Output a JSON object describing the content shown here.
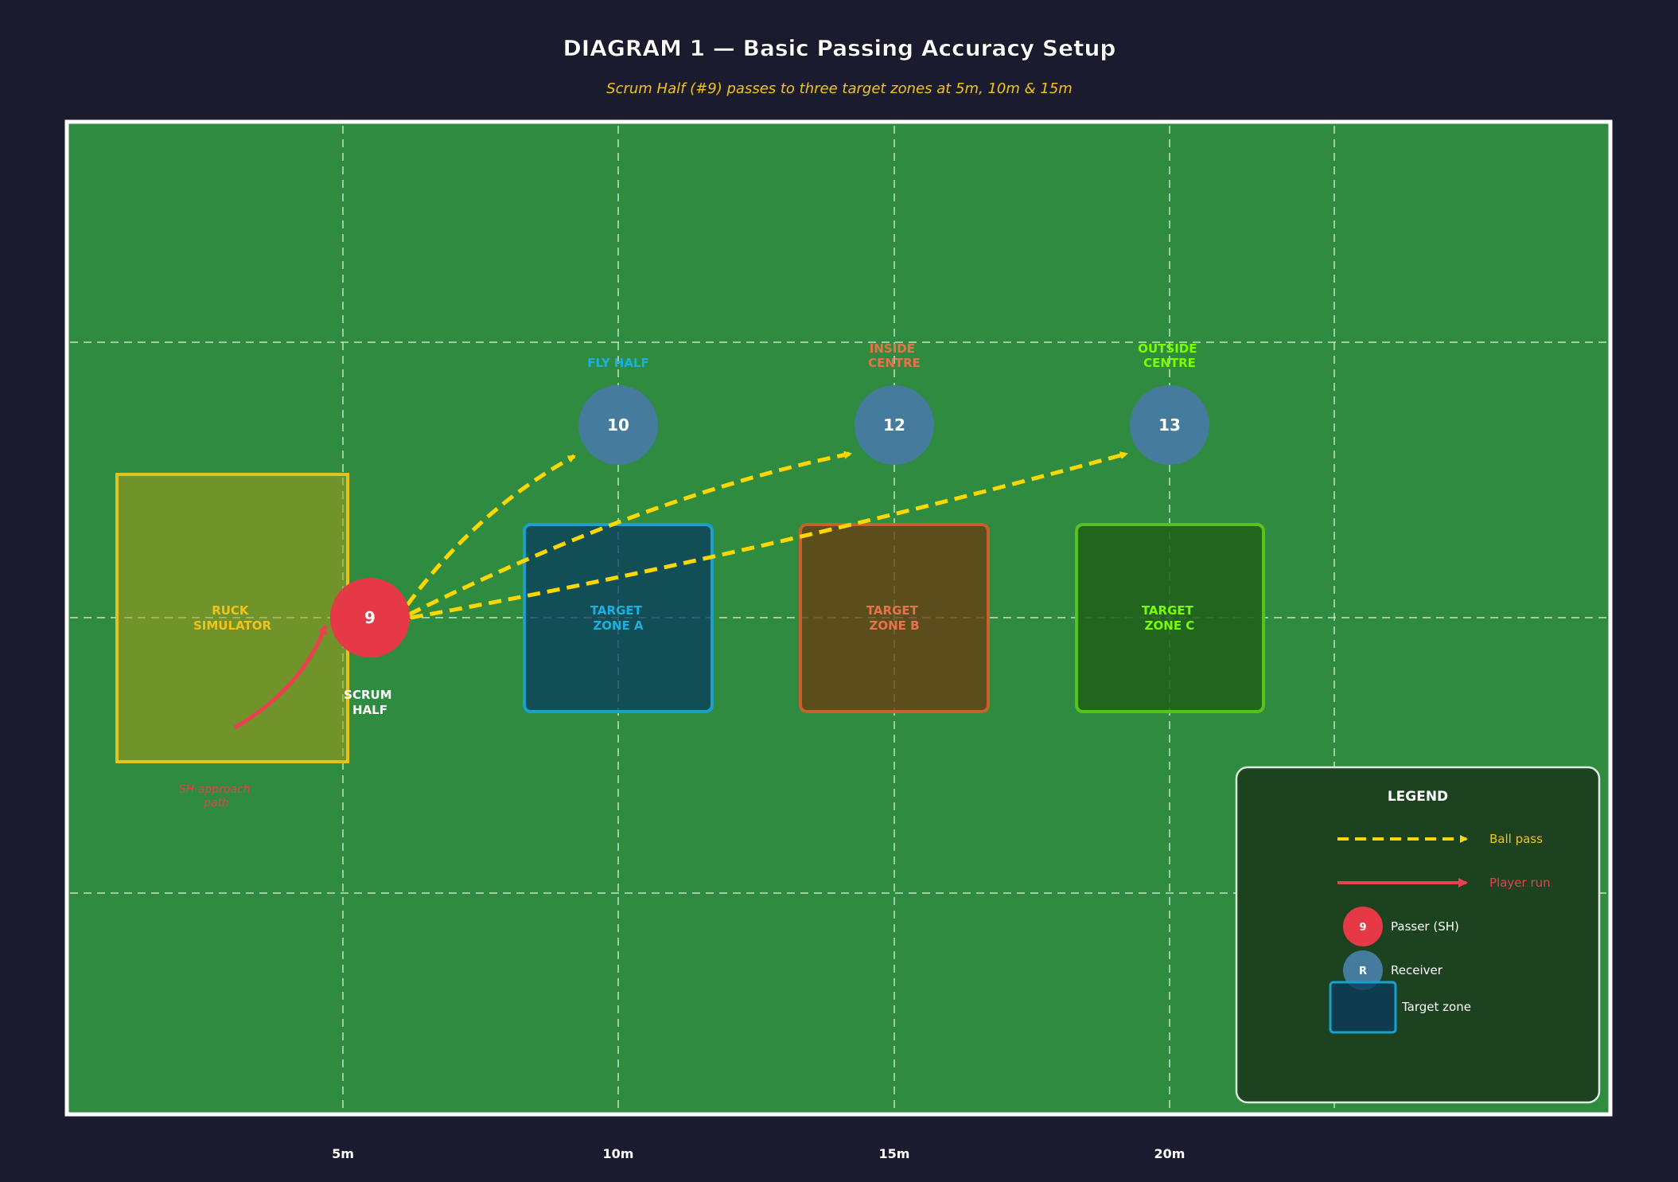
{
  "header": {
    "title": "DIAGRAM 1 — Basic Passing Accuracy Setup",
    "subtitle": "Scrum Half (#9) passes to three target zones at 5m, 10m & 15m"
  },
  "colors": {
    "background": "#1b1b2f",
    "pitch": "#2e8b3f",
    "pitch_border": "#ffffff",
    "ball_pass": "#ffd700",
    "player_run": "#e8414f",
    "passer": "#e63946",
    "receiver": "#457b9d",
    "zone_a": "#1ab0e0",
    "zone_b": "#e8734a",
    "zone_c": "#7cfc00",
    "ruck": "#f2c31b"
  },
  "distance_markers": [
    "5m",
    "10m",
    "15m",
    "20m"
  ],
  "ruck_simulator": {
    "line1": "RUCK",
    "line2": "SIMULATOR"
  },
  "approach_label": {
    "line1": "SH approach",
    "line2": "path"
  },
  "passer": {
    "number": "9",
    "label1": "SCRUM",
    "label2": "HALF"
  },
  "receivers": [
    {
      "number": "10",
      "label1": "FLY HALF",
      "label2": ""
    },
    {
      "number": "12",
      "label1": "INSIDE",
      "label2": "CENTRE"
    },
    {
      "number": "13",
      "label1": "OUTSIDE",
      "label2": "CENTRE"
    }
  ],
  "target_zones": [
    {
      "line1": "TARGET",
      "line2": "ZONE A"
    },
    {
      "line1": "TARGET",
      "line2": "ZONE B"
    },
    {
      "line1": "TARGET",
      "line2": "ZONE C"
    }
  ],
  "legend": {
    "title": "LEGEND",
    "ball_pass": "Ball pass",
    "player_run": "Player run",
    "passer": "Passer (SH)",
    "passer_symbol": "9",
    "receiver": "Receiver",
    "receiver_symbol": "R",
    "target_zone": "Target zone"
  }
}
